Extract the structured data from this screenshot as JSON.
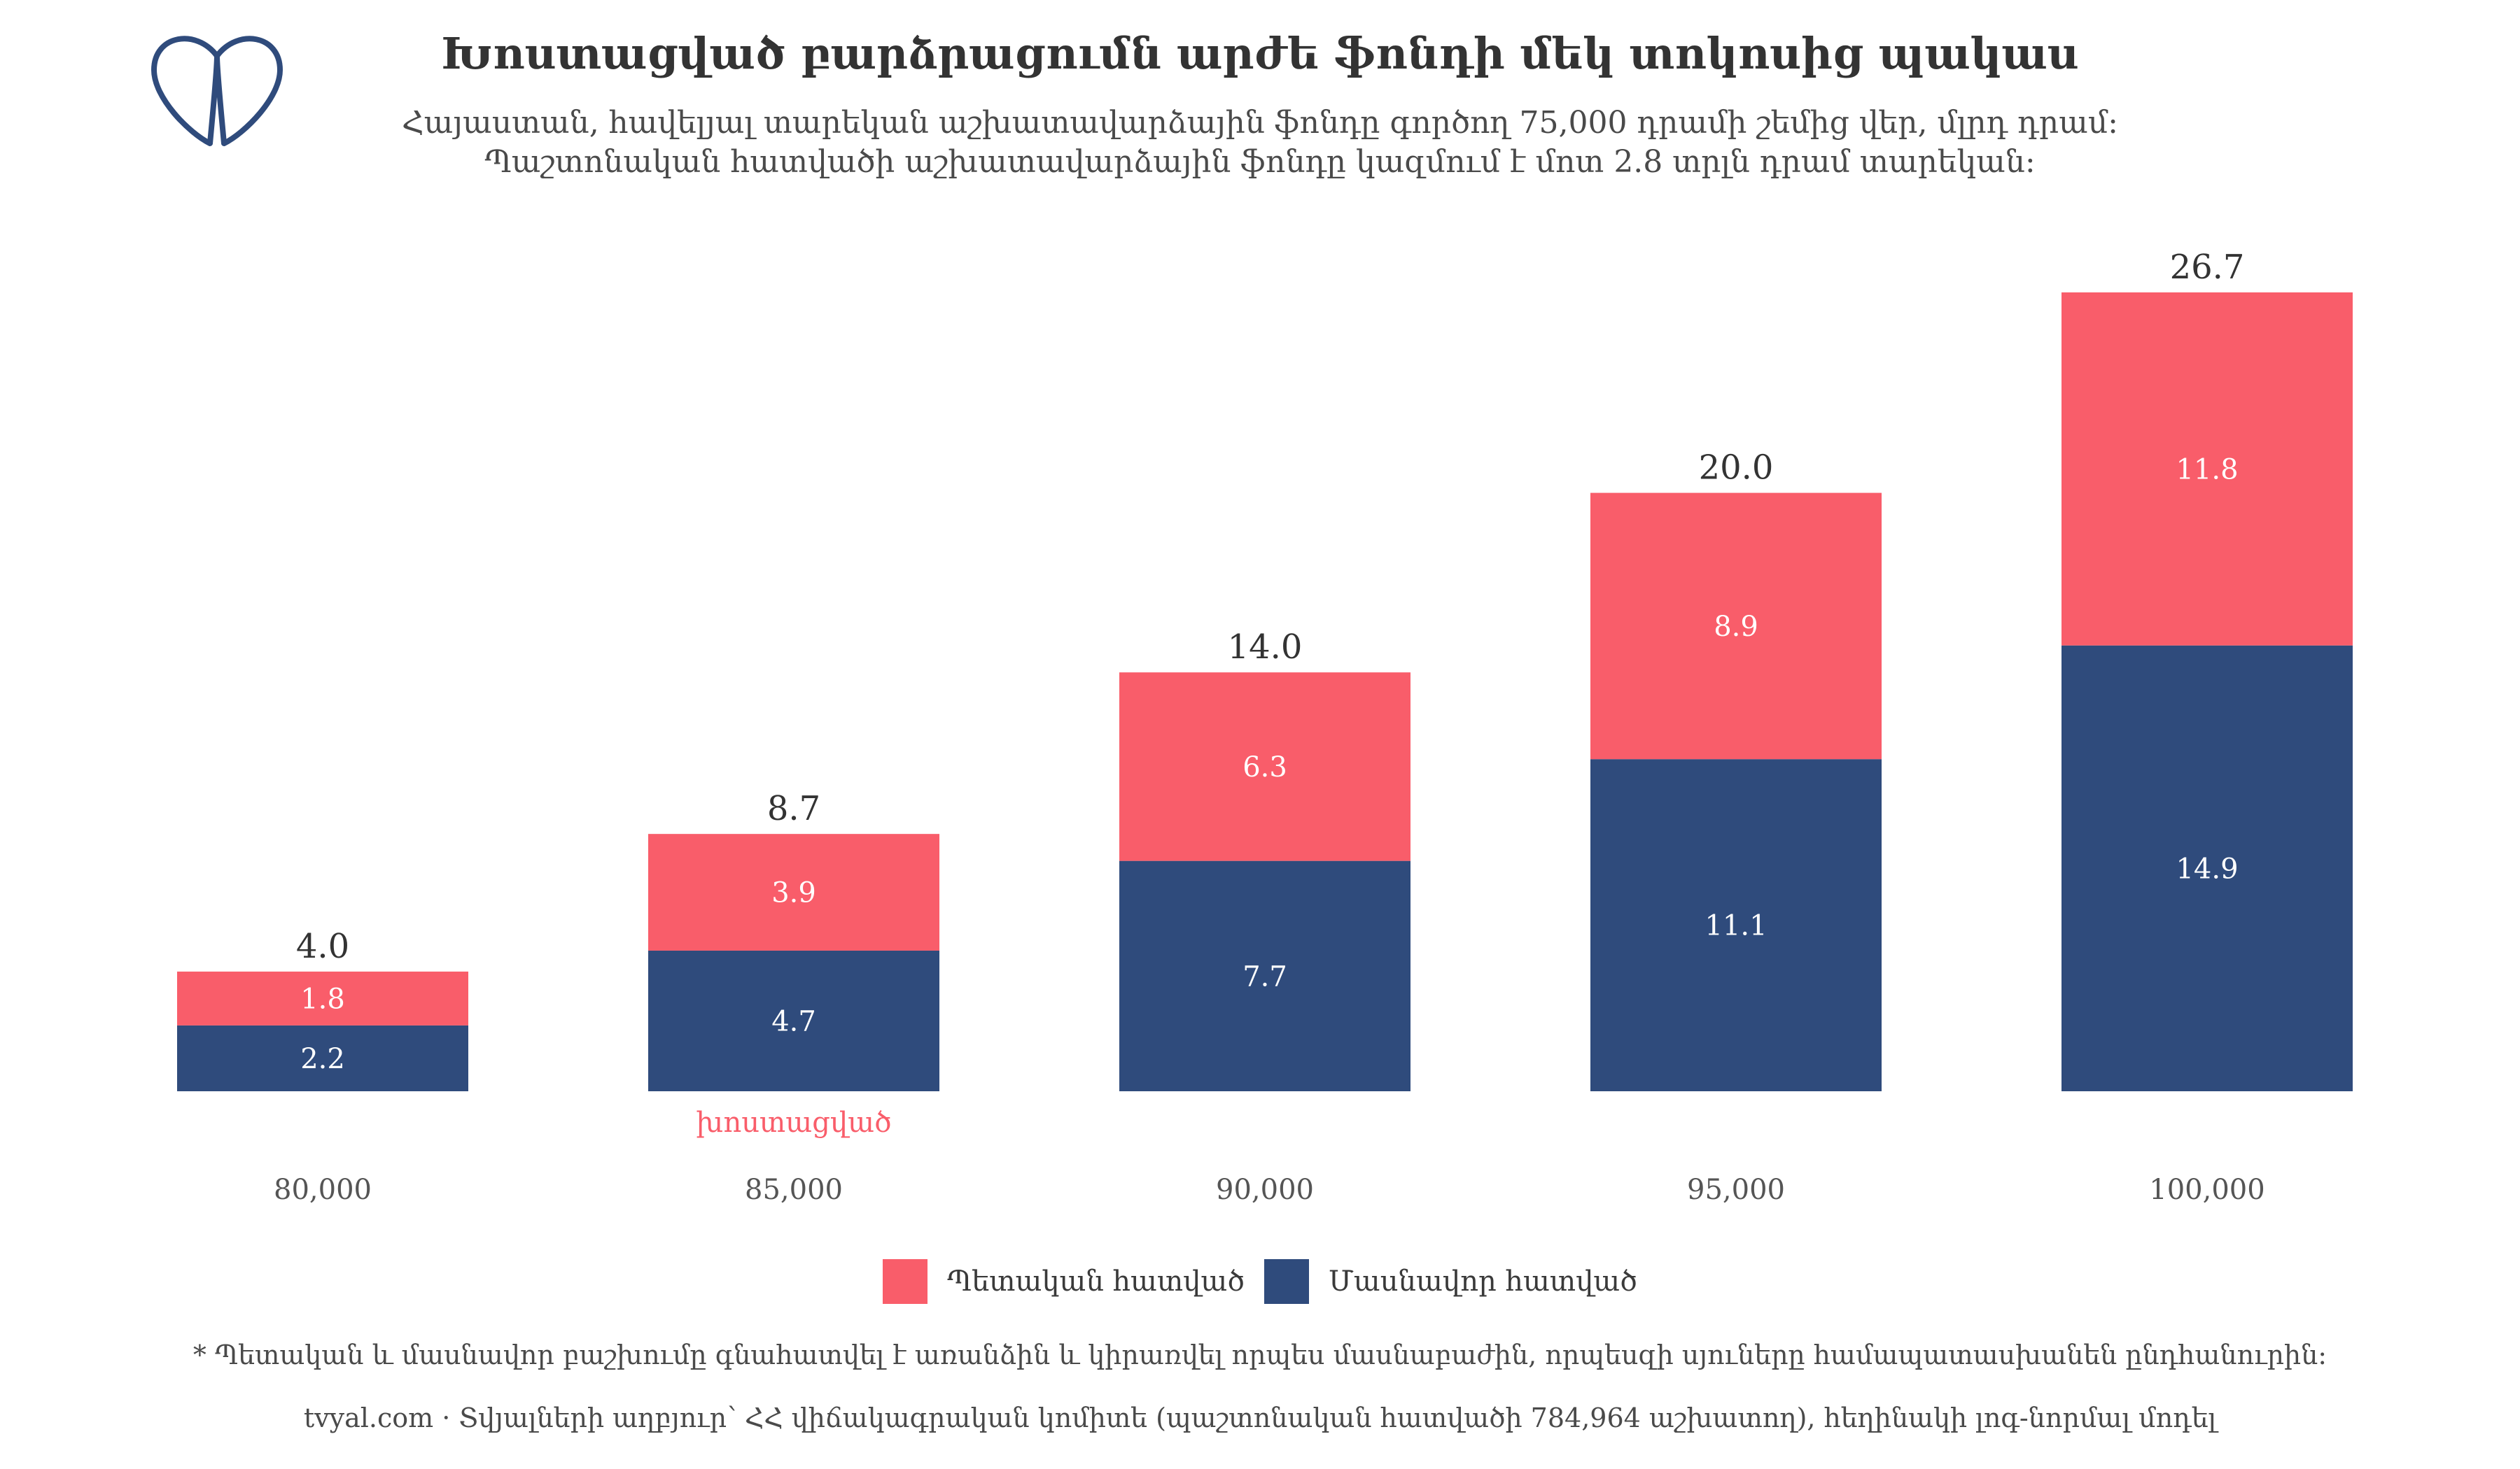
{
  "colors": {
    "public": "#f95d6a",
    "private": "#2f4b7c",
    "highlight": "#f95d6a",
    "logo": "#2f4b7c"
  },
  "logo": {
    "icon": "tvyal-logo-icon"
  },
  "header": {
    "title": "Խոստացված բարձրացումն արժե ֆոնդի մեկ տոկոսից պակաս",
    "subtitle_line1": "Հայաստան, հավելյալ տարեկան աշխատավարձային ֆոնդը գործող 75,000 դրամի շեմից վեր, մլրդ դրամ:",
    "subtitle_line2": "Պաշտոնական հատվածի աշխատավարձային ֆոնդը կազմում է մոտ 2.8 տրլն դրամ տարեկան:"
  },
  "chart_data": {
    "type": "bar",
    "stacked": true,
    "categories": [
      "80,000",
      "85,000",
      "90,000",
      "95,000",
      "100,000"
    ],
    "series": [
      {
        "name": "Մասնավոր հատված",
        "values": [
          2.2,
          4.7,
          7.7,
          11.1,
          14.9
        ],
        "value_labels": [
          "2.2",
          "4.7",
          "7.7",
          "11.1",
          "14.9"
        ]
      },
      {
        "name": "Պետական հատված",
        "values": [
          1.8,
          3.9,
          6.3,
          8.9,
          11.8
        ],
        "value_labels": [
          "1.8",
          "3.9",
          "6.3",
          "8.9",
          "11.8"
        ]
      }
    ],
    "totals": [
      4.0,
      8.7,
      14.0,
      20.0,
      26.7
    ],
    "total_labels": [
      "4.0",
      "8.7",
      "14.0",
      "20.0",
      "26.7"
    ],
    "ylim": [
      0,
      30
    ],
    "grid": false,
    "legend_position": "bottom",
    "annotations": [
      {
        "category": "85,000",
        "text": "խոստացված"
      }
    ]
  },
  "legend": {
    "public_label": "Պետական հատված",
    "private_label": "Մասնավոր հատված"
  },
  "footer": {
    "footnote": "* Պետական և մասնավոր բաշխումը գնահատվել է առանձին և կիրառվել որպես մասնաբաժին, որպեսզի սյուները համապատասխանեն ընդհանուրին:",
    "source": "tvyal.com  ·  Տվյալների աղբյուր՝ ՀՀ վիճակագրական կոմիտե (պաշտոնական հատվածի 784,964 աշխատող), հեղինակի լոգ-նորմալ մոդել"
  }
}
